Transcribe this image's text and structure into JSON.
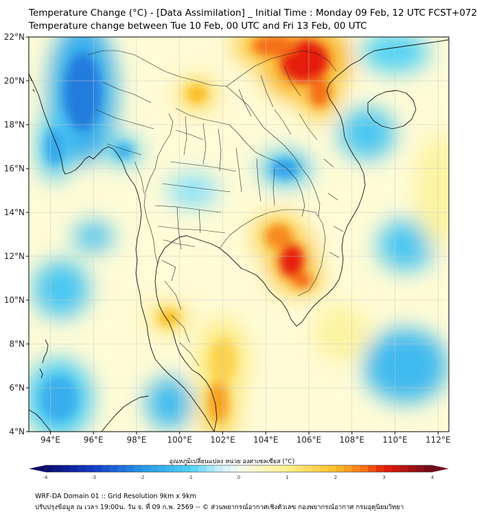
{
  "title": "Temperature Change (°C) - [Data Assimilation] _ Initial Time : Monday 09 Feb, 12 UTC FCST+072",
  "subtitle": "Temperature change between Tue 10 Feb, 00 UTC and Fri 13 Feb, 00 UTC",
  "map": {
    "lon_range": [
      93,
      112.5
    ],
    "lat_range": [
      4,
      22
    ],
    "lon_ticks": [
      {
        "value": 94,
        "label": "94°E"
      },
      {
        "value": 96,
        "label": "96°E"
      },
      {
        "value": 98,
        "label": "98°E"
      },
      {
        "value": 100,
        "label": "100°E"
      },
      {
        "value": 102,
        "label": "102°E"
      },
      {
        "value": 104,
        "label": "104°E"
      },
      {
        "value": 106,
        "label": "106°E"
      },
      {
        "value": 108,
        "label": "108°E"
      },
      {
        "value": 110,
        "label": "110°E"
      },
      {
        "value": 112,
        "label": "112°E"
      }
    ],
    "lat_ticks": [
      {
        "value": 4,
        "label": "4°N"
      },
      {
        "value": 6,
        "label": "6°N"
      },
      {
        "value": 8,
        "label": "8°N"
      },
      {
        "value": 10,
        "label": "10°N"
      },
      {
        "value": 12,
        "label": "12°N"
      },
      {
        "value": 14,
        "label": "14°N"
      },
      {
        "value": 16,
        "label": "16°N"
      },
      {
        "value": 18,
        "label": "18°N"
      },
      {
        "value": 20,
        "label": "20°N"
      },
      {
        "value": 22,
        "label": "22°N"
      }
    ],
    "field_blobs": [
      {
        "lon": 105.8,
        "lat": 20.9,
        "rx": 1.6,
        "ry": 1.4,
        "value": 3.0
      },
      {
        "lon": 104.4,
        "lat": 21.6,
        "rx": 1.5,
        "ry": 0.7,
        "value": 2.6
      },
      {
        "lon": 106.5,
        "lat": 19.5,
        "rx": 0.7,
        "ry": 1.0,
        "value": 2.6
      },
      {
        "lon": 105.2,
        "lat": 11.8,
        "rx": 0.8,
        "ry": 1.1,
        "value": 3.0
      },
      {
        "lon": 104.6,
        "lat": 12.9,
        "rx": 0.9,
        "ry": 0.8,
        "value": 2.4
      },
      {
        "lon": 105.7,
        "lat": 10.9,
        "rx": 0.7,
        "ry": 0.5,
        "value": 2.6
      },
      {
        "lon": 100.8,
        "lat": 19.4,
        "rx": 0.7,
        "ry": 0.6,
        "value": 2.0
      },
      {
        "lon": 101.8,
        "lat": 5.4,
        "rx": 0.7,
        "ry": 1.4,
        "value": 2.2
      },
      {
        "lon": 99.5,
        "lat": 9.2,
        "rx": 0.7,
        "ry": 0.5,
        "value": 2.0
      },
      {
        "lon": 102.0,
        "lat": 7.2,
        "rx": 0.9,
        "ry": 1.5,
        "value": 1.6
      },
      {
        "lon": 95.5,
        "lat": 19.5,
        "rx": 1.2,
        "ry": 2.5,
        "value": -2.3
      },
      {
        "lon": 94.2,
        "lat": 17.0,
        "rx": 0.6,
        "ry": 1.2,
        "value": -1.7
      },
      {
        "lon": 97.4,
        "lat": 16.8,
        "rx": 0.6,
        "ry": 0.5,
        "value": -1.6
      },
      {
        "lon": 104.9,
        "lat": 16.0,
        "rx": 0.9,
        "ry": 0.6,
        "value": -1.8
      },
      {
        "lon": 100.6,
        "lat": 15.0,
        "rx": 0.9,
        "ry": 0.6,
        "value": -0.7
      },
      {
        "lon": 94.5,
        "lat": 10.5,
        "rx": 1.0,
        "ry": 1.0,
        "value": -1.2
      },
      {
        "lon": 96.0,
        "lat": 12.9,
        "rx": 0.7,
        "ry": 0.5,
        "value": -1.3
      },
      {
        "lon": 94.4,
        "lat": 5.5,
        "rx": 1.2,
        "ry": 1.4,
        "value": -1.6
      },
      {
        "lon": 99.5,
        "lat": 5.3,
        "rx": 0.8,
        "ry": 0.9,
        "value": -1.4
      },
      {
        "lon": 108.7,
        "lat": 17.6,
        "rx": 1.0,
        "ry": 0.9,
        "value": -1.2
      },
      {
        "lon": 110.5,
        "lat": 12.5,
        "rx": 1.0,
        "ry": 0.9,
        "value": -1.2
      },
      {
        "lon": 110.5,
        "lat": 7.0,
        "rx": 1.5,
        "ry": 1.3,
        "value": -1.4
      },
      {
        "lon": 110.0,
        "lat": 21.3,
        "rx": 1.2,
        "ry": 0.7,
        "value": -1.0
      },
      {
        "lon": 112.0,
        "lat": 15.0,
        "rx": 0.8,
        "ry": 2.0,
        "value": 0.8
      },
      {
        "lon": 107.5,
        "lat": 8.5,
        "rx": 1.0,
        "ry": 1.0,
        "value": 0.8
      }
    ]
  },
  "colorbar": {
    "title": "อุณหภูมิเปลี่ยนแปลง หน่วย องศาเซลเซียส (°C)",
    "min": -4,
    "max": 4,
    "ticks": [
      {
        "value": -4,
        "label": "-4"
      },
      {
        "value": -3,
        "label": "-3"
      },
      {
        "value": -2,
        "label": "-2"
      },
      {
        "value": -1,
        "label": "-1"
      },
      {
        "value": 0,
        "label": "0"
      },
      {
        "value": 1,
        "label": "1"
      },
      {
        "value": 2,
        "label": "2"
      },
      {
        "value": 3,
        "label": "3"
      },
      {
        "value": 4,
        "label": "4"
      }
    ]
  },
  "footer": {
    "line1": "WRF-DA Domain 01 :: Grid Resolution 9km x 9km",
    "line2": "ปรับปรุงข้อมูล ณ เวลา 19:00น. วัน จ. ที่ 09 ก.พ. 2569 -- © ส่วนพยากรณ์อากาศเชิงตัวเลข กองพยากรณ์อากาศ กรมอุตุนิยมวิทยา"
  }
}
